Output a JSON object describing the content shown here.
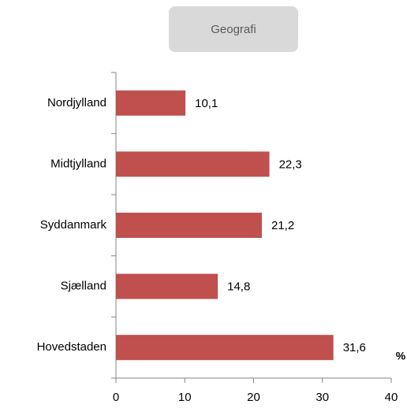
{
  "chart_data": {
    "type": "bar",
    "orientation": "horizontal",
    "title": "Geografi",
    "categories": [
      "Nordjylland",
      "Midtjylland",
      "Syddanmark",
      "Sjælland",
      "Hovedstaden"
    ],
    "values": [
      10.1,
      22.3,
      21.2,
      14.8,
      31.6
    ],
    "value_labels": [
      "10,1",
      "22,3",
      "21,2",
      "14,8",
      "31,6"
    ],
    "color": "#c0504d",
    "x_axis_label": "%",
    "xlim": [
      0,
      40
    ],
    "xticks": [
      0,
      10,
      20,
      30,
      40
    ],
    "grid": false
  }
}
